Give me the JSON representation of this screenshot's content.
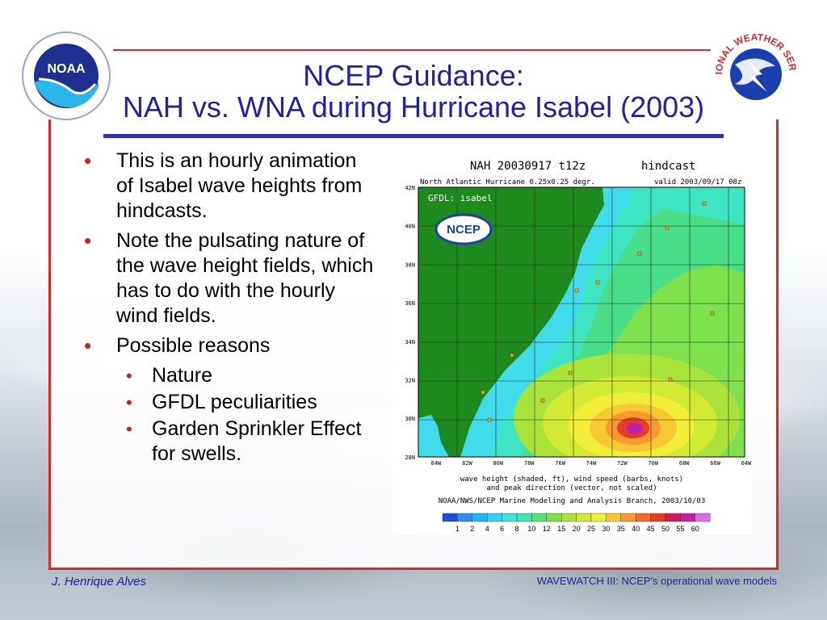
{
  "title": {
    "line1": "NCEP Guidance:",
    "line2": "NAH vs. WNA during Hurricane Isabel (2003)"
  },
  "logos": {
    "left_icon": "noaa-logo-icon",
    "left_text": "NOAA",
    "right_icon": "national-weather-service-logo-icon",
    "right_text": "NATIONAL WEATHER SERVICE"
  },
  "bullets": [
    {
      "text": "This is an hourly animation of Isabel wave heights from hindcasts."
    },
    {
      "text": "Note the pulsating nature of the wave height fields, which has to do with the hourly wind fields."
    },
    {
      "text": "Possible reasons"
    }
  ],
  "sub_bullets": [
    {
      "text": "Nature"
    },
    {
      "text": "GFDL peculiarities"
    },
    {
      "text": "Garden Sprinkler Effect for swells."
    }
  ],
  "map": {
    "header_left": "NAH 20030917 t12z",
    "header_right": "hindcast",
    "subheader_left": "North Atlantic Hurricane 0.25x0.25 degr.",
    "subheader_right": "valid 2003/09/17 08z",
    "model_label": "GFDL: isabel",
    "ncep_badge": "NCEP",
    "lat_labels": [
      "42N",
      "40N",
      "38N",
      "36N",
      "34N",
      "32N",
      "30N",
      "28N"
    ],
    "lon_labels": [
      "84W",
      "82W",
      "80W",
      "78W",
      "76W",
      "74W",
      "72W",
      "70W",
      "68W",
      "66W",
      "64W"
    ],
    "caption_line1": "wave height (shaded, ft), wind speed (barbs, knots)",
    "caption_line2": "and peak direction (vector, not scaled)",
    "credit": "NOAA/NWS/NCEP Marine Modeling and Analysis Branch, 2003/10/03",
    "colorbar_labels": [
      "1",
      "2",
      "4",
      "6",
      "8",
      "10",
      "12",
      "15",
      "20",
      "25",
      "30",
      "35",
      "40",
      "45",
      "50",
      "55",
      "60"
    ],
    "colorbar_colors": [
      "#1f4fd8",
      "#2a8cf0",
      "#21b6f2",
      "#33d4f0",
      "#3fe5d6",
      "#3fe6b0",
      "#55e07a",
      "#7ee04c",
      "#a9e33a",
      "#d2ea34",
      "#f2ee36",
      "#f7c832",
      "#f59a2e",
      "#f06a2a",
      "#e83a28",
      "#d11b55",
      "#c21fa8",
      "#e06ae8"
    ]
  },
  "footer": {
    "author": "J. Henrique Alves",
    "series": "WAVEWATCH III: NCEP's operational wave models"
  }
}
